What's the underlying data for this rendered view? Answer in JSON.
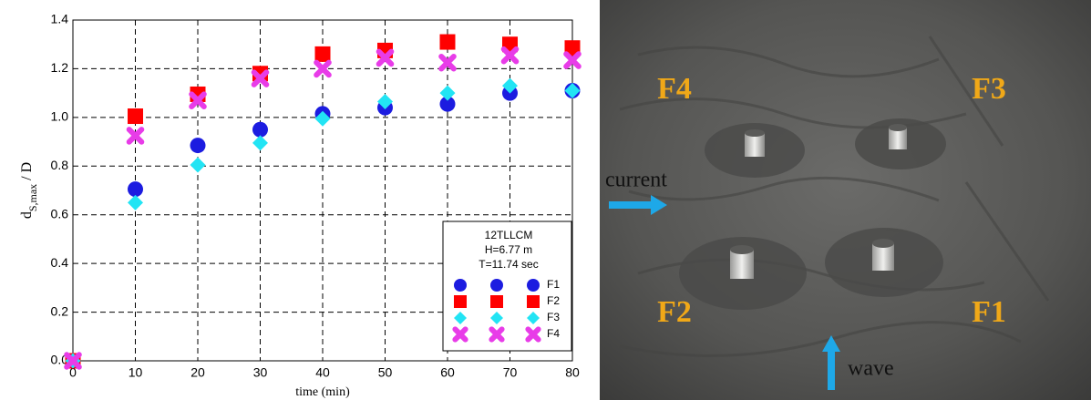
{
  "chart_data": {
    "type": "scatter",
    "xlabel": "time (min)",
    "ylabel_parts": [
      "d",
      "S,max",
      " / D"
    ],
    "x": [
      0,
      10,
      20,
      30,
      40,
      50,
      60,
      70,
      80
    ],
    "series": [
      {
        "name": "F1",
        "color": "#1c1ce0",
        "marker": "circle",
        "values": [
          0,
          0.705,
          0.885,
          0.95,
          1.015,
          1.04,
          1.055,
          1.1,
          1.11
        ]
      },
      {
        "name": "F2",
        "color": "#ff0000",
        "marker": "square",
        "values": [
          0,
          1.005,
          1.095,
          1.18,
          1.26,
          1.275,
          1.31,
          1.3,
          1.285
        ]
      },
      {
        "name": "F3",
        "color": "#22e4f4",
        "marker": "diamond",
        "values": [
          0,
          0.65,
          0.805,
          0.895,
          0.995,
          1.065,
          1.1,
          1.13,
          1.11
        ]
      },
      {
        "name": "F4",
        "color": "#e83ce8",
        "marker": "cross",
        "values": [
          0,
          0.925,
          1.07,
          1.16,
          1.2,
          1.245,
          1.225,
          1.255,
          1.235
        ]
      }
    ],
    "xlim": [
      0,
      80
    ],
    "xticks": [
      0,
      10,
      20,
      30,
      40,
      50,
      60,
      70,
      80
    ],
    "ylim": [
      0,
      1.4
    ],
    "yticks": [
      {
        "value": 0,
        "label": "0.0"
      },
      0.2,
      0.4,
      0.6,
      0.8,
      {
        "value": 1,
        "label": "1.0"
      },
      1.2,
      1.4
    ],
    "grid": true,
    "legend_title": [
      "12TLLCM",
      "H=6.77 m",
      "T=11.74 sec"
    ],
    "legend": "lower right"
  },
  "photo": {
    "labels": [
      "F4",
      "F3",
      "F2",
      "F1"
    ],
    "current": "current",
    "wave": "wave"
  }
}
